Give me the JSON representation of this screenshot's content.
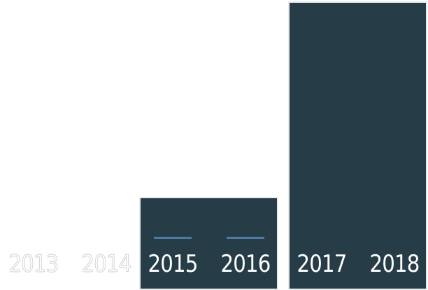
{
  "chart_data": {
    "type": "bar",
    "title": "",
    "xlabel": "",
    "ylabel": "",
    "categories": [
      "2013",
      "2014",
      "2015",
      "2016",
      "2017",
      "2018"
    ],
    "groups": [
      {
        "years": [
          "2013",
          "2014"
        ],
        "value": 0
      },
      {
        "years": [
          "2015",
          "2016"
        ],
        "value": 1
      },
      {
        "years": [
          "2017",
          "2018"
        ],
        "value": 3.1
      }
    ],
    "markers": [
      "2015",
      "2016"
    ],
    "ylim": [
      0,
      3.1
    ],
    "grid": false,
    "legend": "none",
    "colors": {
      "bar_fill": "#263d47",
      "bar_border": "#e7ecee",
      "marker": "#4d79a3",
      "text_on_bar": "#ffffff",
      "text_off_bar": "#cfcfcf"
    }
  }
}
